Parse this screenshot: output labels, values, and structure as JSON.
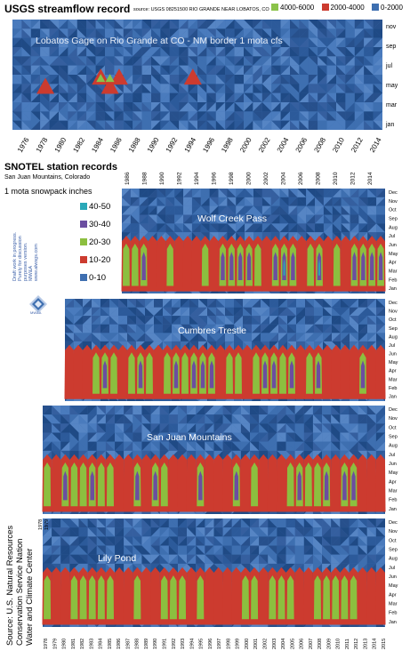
{
  "header": {
    "title": "USGS streamflow record",
    "source": "source: USGS 08251500 RIO GRANDE NEAR LOBATOS, CO"
  },
  "streamflow_legend": [
    {
      "label": "4000-6000",
      "color": "#8bc34a"
    },
    {
      "label": "2000-4000",
      "color": "#cc3b2f"
    },
    {
      "label": "0-2000",
      "color": "#3e6fb0"
    }
  ],
  "streamflow_caption": "Lobatos Gage on Rio Grande at CO - NM border   1 mota cfs",
  "snotel": {
    "title": "SNOTEL station records",
    "subtitle": "San Juan Mountains, Colorado",
    "units": "1 mota  snowpack inches",
    "legend": [
      {
        "label": "40-50",
        "color": "#2aa8b8"
      },
      {
        "label": "30-40",
        "color": "#6b4ea0"
      },
      {
        "label": "20-30",
        "color": "#8cbf3f"
      },
      {
        "label": "10-20",
        "color": "#cc3b2f"
      },
      {
        "label": "0-10",
        "color": "#3e6fb0"
      }
    ],
    "draft_note": [
      "Draft work in progress.",
      "Purely for discussion",
      "purposes version.",
      "MW&A",
      "www.alwsgs.com"
    ],
    "logo_text": "MW&A",
    "source": [
      "Source:  U.S. Natural Resources",
      "Conservation Service Nation",
      "Water and Climate Center"
    ]
  },
  "chart_data": [
    {
      "type": "heatmap",
      "title": "USGS streamflow record",
      "subtitle": "Lobatos Gage on Rio Grande at CO - NM border   1 mota cfs",
      "x_tick_labels": [
        "1976",
        "1978",
        "1980",
        "1982",
        "1984",
        "1986",
        "1988",
        "1990",
        "1992",
        "1994",
        "1996",
        "1998",
        "2000",
        "2002",
        "2004",
        "2006",
        "2008",
        "2010",
        "2012",
        "2014"
      ],
      "y_tick_labels": [
        "nov",
        "sep",
        "jul",
        "may",
        "mar",
        "jan"
      ],
      "color_bins": [
        {
          "range": "4000-6000",
          "color": "#8bc34a"
        },
        {
          "range": "2000-4000",
          "color": "#cc3b2f"
        },
        {
          "range": "0-2000",
          "color": "#3e6fb0"
        }
      ],
      "peak_months_in_2000_4000_band": [
        {
          "year": "1979",
          "month": "may"
        },
        {
          "year": "1985",
          "month": "jun"
        },
        {
          "year": "1986",
          "month": "may"
        },
        {
          "year": "1987",
          "month": "jun"
        },
        {
          "year": "1995",
          "month": "jun"
        }
      ],
      "peak_months_in_4000_6000_band": [
        {
          "year": "1985",
          "month": "jun"
        },
        {
          "year": "1986",
          "month": "jun"
        }
      ]
    },
    {
      "type": "heatmap",
      "title": "Wolf Creek Pass",
      "x_tick_labels": [
        "1986",
        "1988",
        "1990",
        "1992",
        "1994",
        "1996",
        "1998",
        "2000",
        "2002",
        "2004",
        "2006",
        "2008",
        "2010",
        "2012",
        "2014"
      ],
      "y_tick_labels": [
        "Dec",
        "Nov",
        "Oct",
        "Sep",
        "Aug",
        "Jul",
        "Jun",
        "May",
        "Apr",
        "Mar",
        "Feb",
        "Jan"
      ]
    },
    {
      "type": "heatmap",
      "title": "Cumbres Trestle",
      "y_tick_labels": [
        "Dec",
        "Nov",
        "Oct",
        "Sep",
        "Aug",
        "Jul",
        "Jun",
        "May",
        "Apr",
        "Mar",
        "Feb",
        "Jan"
      ]
    },
    {
      "type": "heatmap",
      "title": "San Juan Mountains",
      "y_tick_labels": [
        "Dec",
        "Nov",
        "Oct",
        "Sep",
        "Aug",
        "Jul",
        "Jun",
        "May",
        "Apr",
        "Mar",
        "Feb",
        "Jan"
      ]
    },
    {
      "type": "heatmap",
      "title": "Lily Pond",
      "x_tick_labels": [
        "1978",
        "1979",
        "1980",
        "1981",
        "1982",
        "1983",
        "1984",
        "1985",
        "1986",
        "1987",
        "1988",
        "1989",
        "1990",
        "1991",
        "1992",
        "1993",
        "1994",
        "1995",
        "1996",
        "1997",
        "1998",
        "1999",
        "2000",
        "2001",
        "2002",
        "2003",
        "2004",
        "2005",
        "2006",
        "2007",
        "2008",
        "2009",
        "2010",
        "2011",
        "2012",
        "2013",
        "2014",
        "2015"
      ],
      "y_tick_labels": [
        "Dec",
        "Nov",
        "Oct",
        "Sep",
        "Aug",
        "Jul",
        "Jun",
        "May",
        "Apr",
        "Mar",
        "Feb",
        "Jan"
      ]
    }
  ]
}
